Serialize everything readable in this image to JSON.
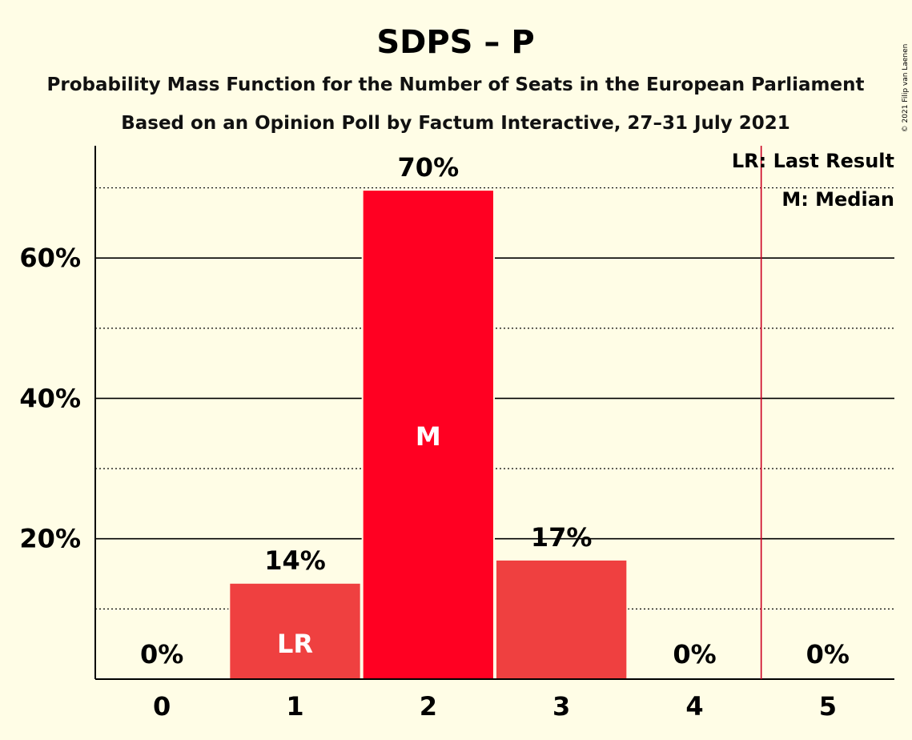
{
  "chart_data": {
    "type": "bar",
    "title": "SDPS – P",
    "subtitle": "Probability Mass Function for the Number of Seats in the European Parliament",
    "subtitle2": "Based on an Opinion Poll by Factum Interactive, 27–31 July 2021",
    "copyright": "© 2021 Filip van Laenen",
    "categories": [
      "0",
      "1",
      "2",
      "3",
      "4",
      "5"
    ],
    "values": [
      0,
      13.6,
      69.6,
      16.9,
      0,
      0
    ],
    "value_labels": [
      "0%",
      "14%",
      "70%",
      "17%",
      "0%",
      "0%"
    ],
    "inner_labels": [
      "",
      "LR",
      "M",
      "",
      "",
      ""
    ],
    "bar_colors": [
      "#EF4040",
      "#EF4040",
      "#FF0022",
      "#EF4040",
      "#EF4040",
      "#EF4040"
    ],
    "ylim": [
      0,
      76
    ],
    "yticks": [
      20,
      40,
      60
    ],
    "ytick_labels": [
      "20%",
      "40%",
      "60%"
    ],
    "minor_gridlines": [
      10,
      30,
      50,
      70
    ],
    "last_result_line_x": 4.5,
    "last_result_color": "#CC0022",
    "legend": [
      "LR: Last Result",
      "M: Median"
    ],
    "legend_position": "top-right",
    "grid": true
  }
}
